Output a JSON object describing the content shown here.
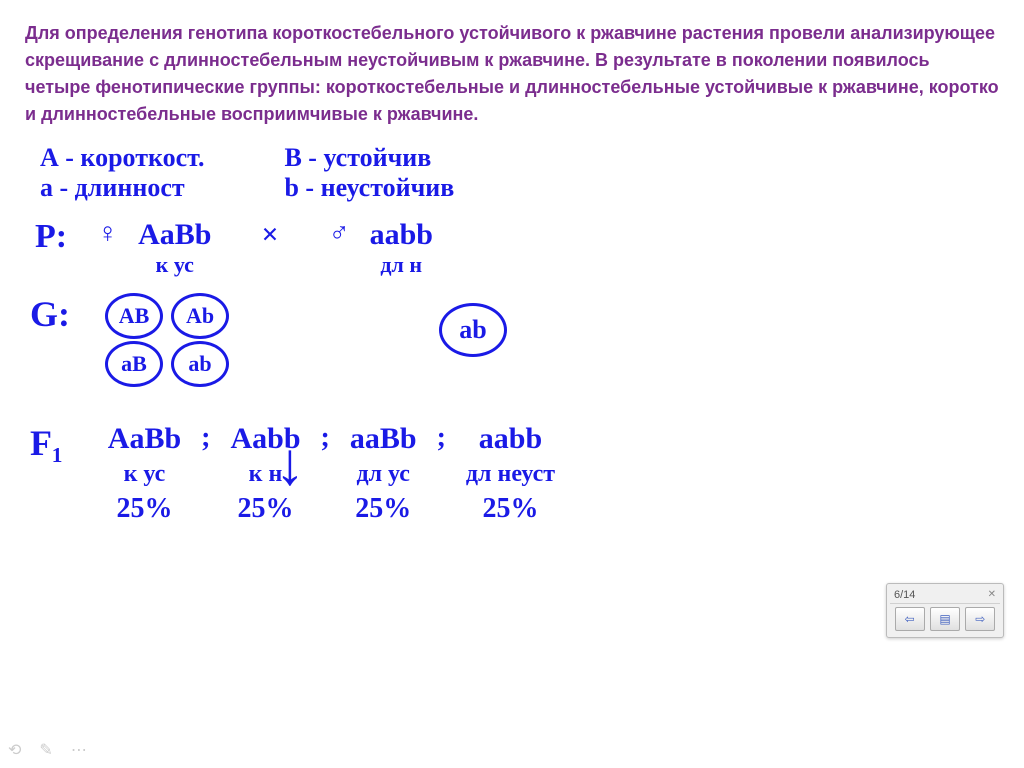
{
  "problem": {
    "text": "Для определения генотипа короткостебельного устойчивого к ржавчине растения провели анализирующее скрещивание с длинностебельным неустойчивым к ржавчине. В результате в поколении появилось четыре фенотипические группы: короткостебельные и длинностебельные устойчивые к ржавчине, коротко и длинностебельные восприимчивые к ржавчине.",
    "color": "#7b2d8e"
  },
  "legend": {
    "A_dom": "А - короткост.",
    "a_rec": "a - длинност",
    "B_dom": "В - устойчив",
    "b_rec": "b - неустойчив"
  },
  "parents": {
    "label": "P:",
    "female_symbol": "♀",
    "female_genotype": "AaBb",
    "female_pheno": "к ус",
    "cross": "×",
    "male_symbol": "♂",
    "male_genotype": "aabb",
    "male_pheno": "дл   н"
  },
  "gametes": {
    "label": "G:",
    "female": [
      "AB",
      "Ab",
      "aB",
      "ab"
    ],
    "male": "ab"
  },
  "offspring": {
    "label": "F₁",
    "items": [
      {
        "geno": "AaBb",
        "pheno": "к ус",
        "pct": "25%"
      },
      {
        "geno": "Aabb",
        "pheno": "к  н",
        "pct": "25%"
      },
      {
        "geno": "aaBb",
        "pheno": "дл ус",
        "pct": "25%"
      },
      {
        "geno": "aabb",
        "pheno": "дл неуст",
        "pct": "25%"
      }
    ]
  },
  "toolbar": {
    "page": "6/14",
    "prev": "⇦",
    "menu": "▤",
    "next": "⇨"
  },
  "bottom": {
    "icon1": "⟲",
    "icon2": "✎",
    "icon3": "⋯"
  },
  "colors": {
    "ink": "#1a1ae6",
    "problem": "#7b2d8e",
    "bg": "#ffffff"
  }
}
